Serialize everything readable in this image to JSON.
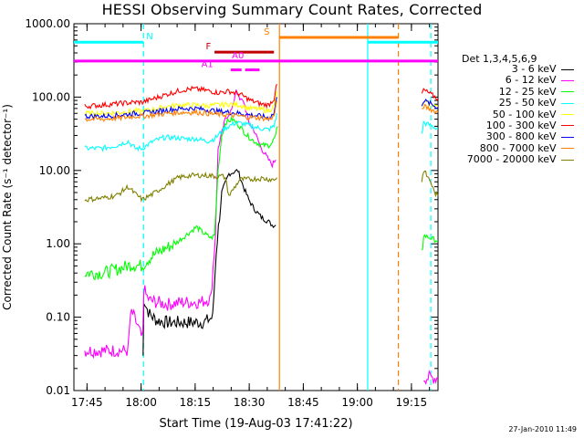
{
  "chart_data": {
    "type": "line",
    "title": "HESSI Observing Summary Count Rates, Corrected",
    "xlabel": "Start Time (19-Aug-03 17:41:22)",
    "ylabel": "Corrected Count Rate (s⁻¹ detector⁻¹)",
    "ylog": true,
    "ylim": [
      0.01,
      1000
    ],
    "xlim_minutes": [
      0,
      101
    ],
    "x_ticks": [
      "17:45",
      "18:00",
      "18:15",
      "18:30",
      "18:45",
      "19:00",
      "19:15"
    ],
    "y_ticks": [
      "0.01",
      "0.10",
      "1.00",
      "10.00",
      "100.00",
      "1000.00"
    ],
    "legend_title": "Det 1,3,4,5,6,9",
    "series": [
      {
        "name": "3 - 6 keV",
        "color": "#000000",
        "segments": [
          [
            [
              19.2,
              0.03
            ],
            [
              19.4,
              0.18
            ],
            [
              20,
              0.14
            ],
            [
              21,
              0.11
            ],
            [
              23,
              0.09
            ],
            [
              26,
              0.085
            ],
            [
              30,
              0.085
            ],
            [
              33,
              0.085
            ],
            [
              36,
              0.085
            ],
            [
              38.5,
              0.1
            ],
            [
              39.5,
              0.8
            ],
            [
              41,
              5
            ],
            [
              43,
              9
            ],
            [
              45.5,
              10
            ],
            [
              47,
              6
            ],
            [
              48.5,
              4
            ],
            [
              50,
              3
            ],
            [
              52,
              2.3
            ],
            [
              54,
              2
            ],
            [
              55,
              1.8
            ],
            [
              56,
              1.8
            ]
          ]
        ]
      },
      {
        "name": "6 - 12 keV",
        "color": "#ff00ff",
        "segments": [
          [
            [
              3,
              0.035
            ],
            [
              15,
              0.035
            ],
            [
              15.4,
              0.07
            ],
            [
              16,
              0.12
            ],
            [
              17.5,
              0.08
            ],
            [
              19,
              0.05
            ],
            [
              19.2,
              0.08
            ],
            [
              19.4,
              0.25
            ],
            [
              20,
              0.2
            ],
            [
              21,
              0.17
            ],
            [
              23,
              0.16
            ],
            [
              26,
              0.15
            ],
            [
              30,
              0.16
            ],
            [
              35,
              0.16
            ],
            [
              38,
              0.18
            ],
            [
              39.2,
              1.2
            ],
            [
              40,
              20
            ],
            [
              42,
              50
            ],
            [
              44,
              70
            ],
            [
              45,
              130
            ],
            [
              46,
              90
            ],
            [
              47,
              90
            ],
            [
              48.5,
              45
            ],
            [
              50,
              35
            ],
            [
              52,
              20
            ],
            [
              54,
              14
            ],
            [
              55,
              12
            ],
            [
              56,
              14
            ]
          ],
          [
            [
              97,
              0.015
            ],
            [
              101,
              0.015
            ]
          ]
        ]
      },
      {
        "name": "12 - 25 keV",
        "color": "#00ff00",
        "segments": [
          [
            [
              3,
              0.4
            ],
            [
              8,
              0.4
            ],
            [
              12,
              0.45
            ],
            [
              16,
              0.52
            ],
            [
              19,
              0.5
            ],
            [
              20,
              0.58
            ],
            [
              22,
              0.7
            ],
            [
              25,
              0.85
            ],
            [
              28,
              1.0
            ],
            [
              31,
              1.3
            ],
            [
              34,
              1.7
            ],
            [
              36,
              1.4
            ],
            [
              38,
              1.2
            ],
            [
              39,
              1.3
            ],
            [
              40,
              10
            ],
            [
              41,
              30
            ],
            [
              42,
              45
            ],
            [
              44,
              50
            ],
            [
              46,
              40
            ],
            [
              48,
              30
            ],
            [
              50,
              25
            ],
            [
              52,
              22
            ],
            [
              54,
              22
            ],
            [
              55,
              24
            ],
            [
              56,
              30
            ],
            [
              56.5,
              40
            ]
          ],
          [
            [
              96.5,
              0.7
            ],
            [
              97,
              1.3
            ],
            [
              101,
              1.1
            ]
          ]
        ]
      },
      {
        "name": "25 - 50 keV",
        "color": "#00ffff",
        "segments": [
          [
            [
              3,
              20
            ],
            [
              8,
              20
            ],
            [
              12,
              22
            ],
            [
              15,
              25
            ],
            [
              17,
              20
            ],
            [
              19,
              20
            ],
            [
              22,
              25
            ],
            [
              25,
              28
            ],
            [
              28,
              28
            ],
            [
              31,
              27
            ],
            [
              34,
              27
            ],
            [
              37,
              25
            ],
            [
              39,
              27
            ],
            [
              42,
              38
            ],
            [
              45,
              45
            ],
            [
              48,
              42
            ],
            [
              51,
              38
            ],
            [
              54,
              36
            ],
            [
              55.5,
              40
            ],
            [
              56.3,
              60
            ]
          ],
          [
            [
              96.5,
              30
            ],
            [
              97,
              45
            ],
            [
              101,
              37
            ]
          ]
        ]
      },
      {
        "name": "50 - 100 keV",
        "color": "#ffff00",
        "segments": [
          [
            [
              3,
              60
            ],
            [
              8,
              60
            ],
            [
              13,
              62
            ],
            [
              17,
              65
            ],
            [
              19,
              64
            ],
            [
              22,
              68
            ],
            [
              26,
              75
            ],
            [
              30,
              78
            ],
            [
              34,
              78
            ],
            [
              37,
              76
            ],
            [
              40,
              78
            ],
            [
              43,
              80
            ],
            [
              46,
              78
            ],
            [
              49,
              70
            ],
            [
              52,
              68
            ],
            [
              54,
              65
            ],
            [
              55.5,
              75
            ],
            [
              56.3,
              120
            ]
          ],
          [
            [
              96.5,
              70
            ],
            [
              97,
              85
            ],
            [
              101,
              75
            ]
          ]
        ]
      },
      {
        "name": "100 - 300 keV",
        "color": "#ff0000",
        "segments": [
          [
            [
              3,
              75
            ],
            [
              8,
              78
            ],
            [
              13,
              82
            ],
            [
              17,
              85
            ],
            [
              19,
              85
            ],
            [
              22,
              95
            ],
            [
              26,
              110
            ],
            [
              30,
              125
            ],
            [
              33,
              130
            ],
            [
              36,
              125
            ],
            [
              38,
              120
            ],
            [
              40,
              115
            ],
            [
              43,
              120
            ],
            [
              46,
              110
            ],
            [
              49,
              90
            ],
            [
              52,
              80
            ],
            [
              54,
              78
            ],
            [
              55.5,
              95
            ],
            [
              56.3,
              150
            ]
          ],
          [
            [
              96.5,
              110
            ],
            [
              97,
              125
            ],
            [
              101,
              95
            ]
          ]
        ]
      },
      {
        "name": "300 - 800 keV",
        "color": "#0000ff",
        "segments": [
          [
            [
              3,
              55
            ],
            [
              8,
              55
            ],
            [
              13,
              57
            ],
            [
              17,
              60
            ],
            [
              19,
              60
            ],
            [
              22,
              63
            ],
            [
              26,
              67
            ],
            [
              30,
              70
            ],
            [
              34,
              70
            ],
            [
              37,
              67
            ],
            [
              40,
              64
            ],
            [
              43,
              62
            ],
            [
              46,
              60
            ],
            [
              49,
              57
            ],
            [
              52,
              55
            ],
            [
              54,
              52
            ],
            [
              55.5,
              60
            ],
            [
              56.3,
              100
            ]
          ],
          [
            [
              96.5,
              80
            ],
            [
              97,
              90
            ],
            [
              101,
              72
            ]
          ]
        ]
      },
      {
        "name": "800 - 7000 keV",
        "color": "#ff8000",
        "segments": [
          [
            [
              3,
              50
            ],
            [
              8,
              50
            ],
            [
              13,
              52
            ],
            [
              17,
              55
            ],
            [
              19,
              55
            ],
            [
              22,
              57
            ],
            [
              26,
              60
            ],
            [
              30,
              62
            ],
            [
              34,
              62
            ],
            [
              37,
              60
            ],
            [
              40,
              58
            ],
            [
              43,
              57
            ],
            [
              46,
              55
            ],
            [
              49,
              53
            ],
            [
              52,
              52
            ],
            [
              54,
              50
            ],
            [
              55.5,
              55
            ],
            [
              56.3,
              90
            ]
          ],
          [
            [
              96.5,
              65
            ],
            [
              97,
              75
            ],
            [
              101,
              62
            ]
          ]
        ]
      },
      {
        "name": "7000 - 20000 keV",
        "color": "#808000",
        "segments": [
          [
            [
              3,
              4
            ],
            [
              8,
              4.2
            ],
            [
              12,
              4.6
            ],
            [
              15,
              6
            ],
            [
              17,
              4.8
            ],
            [
              19,
              4
            ],
            [
              22,
              4.8
            ],
            [
              26,
              6.5
            ],
            [
              29,
              8
            ],
            [
              32,
              8.5
            ],
            [
              35,
              8.6
            ],
            [
              38,
              8.5
            ],
            [
              40,
              8.2
            ],
            [
              41,
              8.4
            ],
            [
              42,
              8
            ],
            [
              43,
              4.5
            ],
            [
              46,
              7.5
            ],
            [
              49,
              7.6
            ],
            [
              52,
              7.8
            ],
            [
              54,
              7.6
            ],
            [
              55.5,
              7.5
            ],
            [
              56.3,
              8
            ]
          ],
          [
            [
              96.5,
              7
            ],
            [
              97,
              10
            ],
            [
              99,
              7
            ],
            [
              100,
              5
            ],
            [
              101,
              4.5
            ]
          ]
        ]
      }
    ],
    "annotations": {
      "flags": [
        {
          "label": "N",
          "color": "#00ffff",
          "x_label": 21,
          "y_value": 560,
          "segments": [
            [
              0,
              19.3
            ],
            [
              81.5,
              101
            ]
          ]
        },
        {
          "label": "S",
          "color": "#ff8000",
          "x_label": 53.5,
          "y_value": 650,
          "segments": [
            [
              57,
              90
            ]
          ]
        },
        {
          "label": "F",
          "color": "#c00000",
          "x_label": 37.3,
          "y_value": 410,
          "segments": [
            [
              39,
              55.5
            ]
          ]
        },
        {
          "label": "A0",
          "color": "#ff00ff",
          "x_label": 45.5,
          "y_value": 310,
          "segments": [
            [
              0,
              101
            ]
          ]
        },
        {
          "label": "A1",
          "color": "#ff00ff",
          "x_label": 37,
          "y_value": 235,
          "segments": [
            [
              43.5,
              46.5
            ],
            [
              47.5,
              51.5
            ]
          ]
        }
      ],
      "vlines": [
        {
          "x": 19.3,
          "color": "#00ffff",
          "style": "dashed"
        },
        {
          "x": 57.0,
          "color": "#ff8000",
          "style": "solid"
        },
        {
          "x": 81.5,
          "color": "#00ffff",
          "style": "solid"
        },
        {
          "x": 90.0,
          "color": "#ff8000",
          "style": "dashed"
        },
        {
          "x": 99.0,
          "color": "#00ffff",
          "style": "dashed"
        }
      ]
    }
  },
  "footer": "27-Jan-2010 11:49"
}
